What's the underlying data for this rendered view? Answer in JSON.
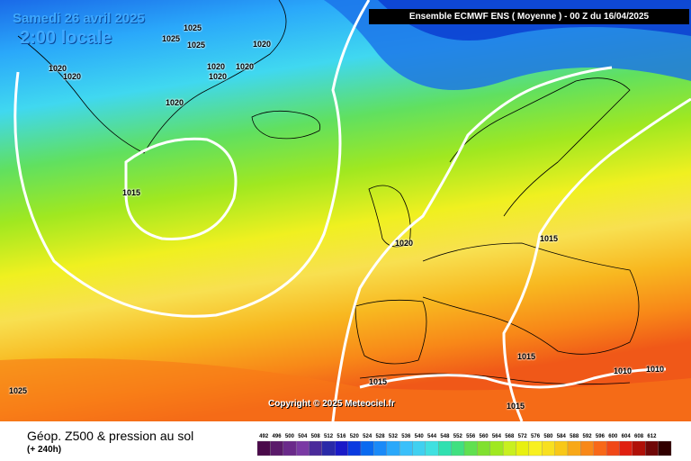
{
  "header": {
    "date": "Samedi 26 avril 2025",
    "time": "2:00 locale",
    "model": "Ensemble ECMWF ENS  ( Moyenne )  -  00 Z du 16/04/2025"
  },
  "copyright": "Copyright © 2025 Meteociel.fr",
  "footer": {
    "title": "Géop. Z500 & pression au sol",
    "subtitle": "(+ 240h)"
  },
  "isobar_labels": [
    "1025",
    "1025",
    "1025",
    "1020",
    "1020",
    "1020",
    "1020",
    "1020",
    "1020",
    "1020",
    "1015",
    "1020",
    "1015",
    "1015",
    "1015",
    "1015",
    "1010",
    "1010",
    "1025",
    "1015"
  ],
  "scale": {
    "labels": [
      "492",
      "496",
      "500",
      "504",
      "508",
      "512",
      "516",
      "520",
      "524",
      "528",
      "532",
      "536",
      "540",
      "544",
      "548",
      "552",
      "556",
      "560",
      "564",
      "568",
      "572",
      "576",
      "580",
      "584",
      "588",
      "592",
      "596",
      "600",
      "604",
      "608",
      "612"
    ],
    "colors": [
      "#4a0a4a",
      "#5a1a6a",
      "#6a2a8a",
      "#7a3aa4",
      "#4a2a9a",
      "#2a2aa8",
      "#1a1ac8",
      "#0a3ae0",
      "#0a6af0",
      "#1a8af8",
      "#2aa8fa",
      "#3ac0fa",
      "#40d0f0",
      "#40e0e0",
      "#30e0b0",
      "#40e080",
      "#60e050",
      "#80e030",
      "#a0e820",
      "#c8f020",
      "#e8f010",
      "#f8f020",
      "#f8e020",
      "#f8c818",
      "#f8a818",
      "#f88818",
      "#f86818",
      "#f04818",
      "#e02010",
      "#b01008",
      "#700808",
      "#300000"
    ]
  }
}
